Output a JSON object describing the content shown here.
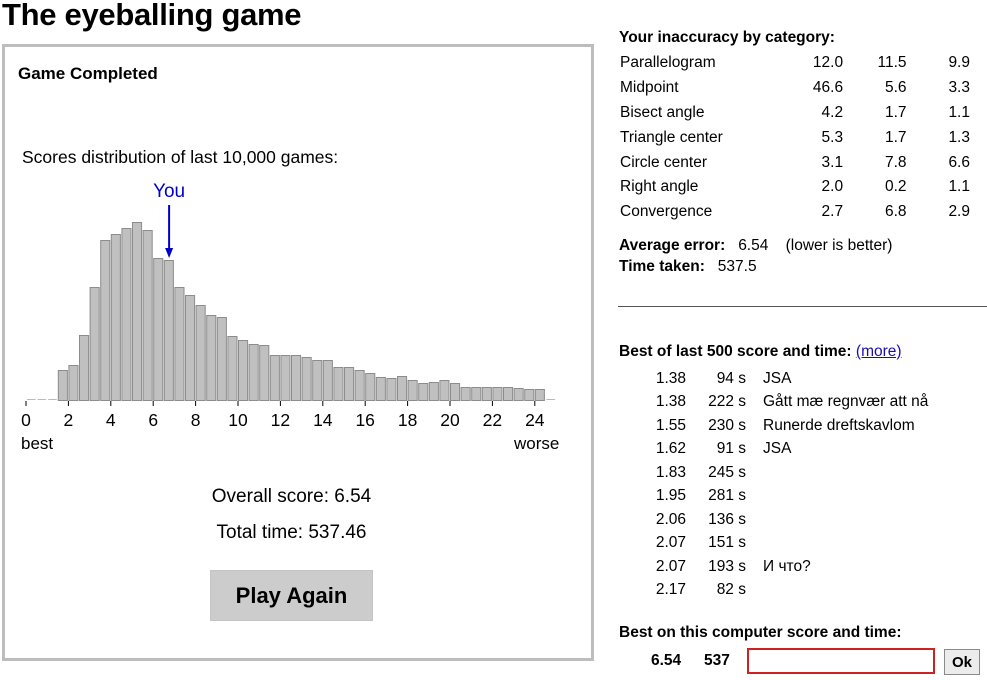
{
  "page": {
    "title": "The eyeballing game"
  },
  "game": {
    "status": "Game Completed",
    "distribution_caption": "Scores distribution of last 10,000 games:",
    "you_label": "You",
    "axis_best": "best",
    "axis_worse": "worse",
    "overall_score": "Overall score: 6.54",
    "total_time": "Total time: 537.46",
    "play_again_label": "Play Again"
  },
  "chart_data": {
    "type": "bar",
    "title": "Scores distribution of last 10,000 games:",
    "xlabel": "",
    "ylabel": "",
    "x_ticks": [
      "0",
      "2",
      "4",
      "6",
      "8",
      "10",
      "12",
      "14",
      "16",
      "18",
      "20",
      "22",
      "24"
    ],
    "xlim": [
      0,
      25
    ],
    "bin_width": 0.5,
    "your_score": 6.54,
    "your_marker_bin": 6.5,
    "bin_starts": [
      0,
      0.5,
      1,
      1.5,
      2,
      2.5,
      3,
      3.5,
      4,
      4.5,
      5,
      5.5,
      6,
      6.5,
      7,
      7.5,
      8,
      8.5,
      9,
      9.5,
      10,
      10.5,
      11,
      11.5,
      12,
      12.5,
      13,
      13.5,
      14,
      14.5,
      15,
      15.5,
      16,
      16.5,
      17,
      17.5,
      18,
      18.5,
      19,
      19.5,
      20,
      20.5,
      21,
      21.5,
      22,
      22.5,
      23,
      23.5,
      24,
      24.5
    ],
    "values": [
      0.5,
      0.5,
      1,
      30,
      35,
      65,
      113,
      160,
      166,
      172,
      178,
      170,
      142,
      140,
      113,
      105,
      95,
      85,
      83,
      64,
      60,
      56,
      55,
      45,
      45,
      45,
      43,
      40,
      40,
      33,
      33,
      30,
      27,
      23,
      22,
      24,
      20,
      17,
      18,
      20,
      17,
      13,
      13,
      13,
      13,
      13,
      12,
      11,
      11,
      0
    ],
    "bar_color": "#c0c0c0",
    "marker_color": "#0000cc"
  },
  "categories": {
    "heading": "Your inaccuracy by category:",
    "rows": [
      {
        "name": "Parallelogram",
        "v1": "12.0",
        "v2": "11.5",
        "v3": "9.9"
      },
      {
        "name": "Midpoint",
        "v1": "46.6",
        "v2": "5.6",
        "v3": "3.3"
      },
      {
        "name": "Bisect angle",
        "v1": "4.2",
        "v2": "1.7",
        "v3": "1.1"
      },
      {
        "name": "Triangle center",
        "v1": "5.3",
        "v2": "1.7",
        "v3": "1.3"
      },
      {
        "name": "Circle center",
        "v1": "3.1",
        "v2": "7.8",
        "v3": "6.6"
      },
      {
        "name": "Right angle",
        "v1": "2.0",
        "v2": "0.2",
        "v3": "1.1"
      },
      {
        "name": "Convergence",
        "v1": "2.7",
        "v2": "6.8",
        "v3": "2.9"
      }
    ],
    "average_label": "Average error:",
    "average_value": "6.54",
    "average_note": "(lower is better)",
    "time_label": "Time taken:",
    "time_value": "537.5"
  },
  "best500": {
    "heading": "Best of last 500 score and time:",
    "more_label": "(more)",
    "rows": [
      {
        "score": "1.38",
        "time": "94 s",
        "name": "JSA"
      },
      {
        "score": "1.38",
        "time": "222 s",
        "name": "Gått mæ regnvær att nå"
      },
      {
        "score": "1.55",
        "time": "230 s",
        "name": "Runerde dreftskavlom"
      },
      {
        "score": "1.62",
        "time": "91 s",
        "name": "JSA"
      },
      {
        "score": "1.83",
        "time": "245 s",
        "name": ""
      },
      {
        "score": "1.95",
        "time": "281 s",
        "name": ""
      },
      {
        "score": "2.06",
        "time": "136 s",
        "name": ""
      },
      {
        "score": "2.07",
        "time": "151 s",
        "name": ""
      },
      {
        "score": "2.07",
        "time": "193 s",
        "name": "И что?"
      },
      {
        "score": "2.17",
        "time": "82 s",
        "name": ""
      }
    ]
  },
  "computer_best": {
    "heading": "Best on this computer score and time:",
    "score": "6.54",
    "time": "537",
    "name_value": "",
    "ok_label": "Ok"
  }
}
